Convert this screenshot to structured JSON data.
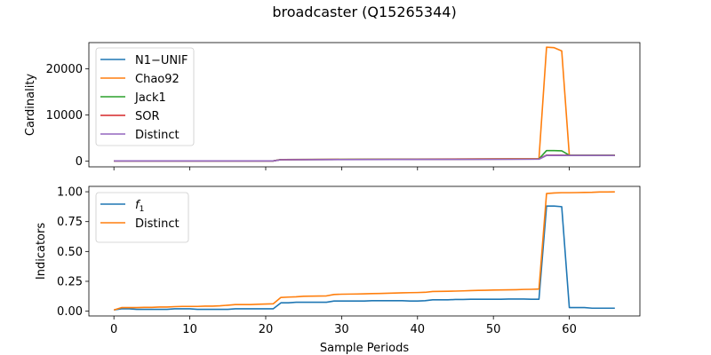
{
  "figure": {
    "title": "broadcaster (Q15265344)"
  },
  "chart_data": [
    {
      "type": "line",
      "ylabel": "Cardinality",
      "xlabel": "",
      "xlim": [
        -3.3,
        69.3
      ],
      "ylim": [
        -1220,
        25700
      ],
      "xticks": [
        0,
        10,
        20,
        30,
        40,
        50,
        60
      ],
      "yticks": [
        0,
        10000,
        20000
      ],
      "ytick_labels": [
        "0",
        "10000",
        "20000"
      ],
      "show_xtick_labels": false,
      "legend": "upper-left",
      "grid": false,
      "series": [
        {
          "name": "N1−UNIF",
          "color": "#1f77b4",
          "x": [
            0,
            21,
            22,
            56,
            57,
            59,
            60,
            66
          ],
          "y": [
            60,
            60,
            350,
            480,
            1300,
            1300,
            1250,
            1250
          ]
        },
        {
          "name": "Chao92",
          "color": "#ff7f0e",
          "x": [
            0,
            21,
            22,
            56,
            57,
            58,
            59,
            60,
            61,
            66
          ],
          "y": [
            60,
            60,
            350,
            550,
            24700,
            24600,
            23900,
            1300,
            1300,
            1300
          ]
        },
        {
          "name": "Jack1",
          "color": "#2ca02c",
          "x": [
            0,
            21,
            22,
            56,
            57,
            58,
            59,
            60,
            61,
            66
          ],
          "y": [
            60,
            60,
            350,
            500,
            2300,
            2300,
            2250,
            1300,
            1300,
            1300
          ]
        },
        {
          "name": "SOR",
          "color": "#d62728",
          "x": [
            0,
            21,
            22,
            56,
            57,
            59,
            60,
            66
          ],
          "y": [
            60,
            60,
            340,
            470,
            1300,
            1300,
            1250,
            1250
          ]
        },
        {
          "name": "Distinct",
          "color": "#9467bd",
          "x": [
            0,
            21,
            22,
            56,
            57,
            59,
            60,
            66
          ],
          "y": [
            60,
            60,
            320,
            440,
            1250,
            1250,
            1250,
            1250
          ]
        }
      ]
    },
    {
      "type": "line",
      "ylabel": "Indicators",
      "xlabel": "Sample Periods",
      "xlim": [
        -3.3,
        69.3
      ],
      "ylim": [
        -0.04,
        1.045
      ],
      "xticks": [
        0,
        10,
        20,
        30,
        40,
        50,
        60
      ],
      "xtick_labels": [
        "0",
        "10",
        "20",
        "30",
        "40",
        "50",
        "60"
      ],
      "yticks": [
        0.0,
        0.25,
        0.5,
        0.75,
        1.0
      ],
      "ytick_labels": [
        "0.00",
        "0.25",
        "0.50",
        "0.75",
        "1.00"
      ],
      "show_xtick_labels": true,
      "legend": "upper-left",
      "grid": false,
      "series": [
        {
          "name": "f1",
          "color": "#1f77b4",
          "x": [
            0,
            1,
            2,
            3,
            4,
            5,
            6,
            7,
            8,
            9,
            10,
            11,
            12,
            13,
            14,
            15,
            16,
            17,
            18,
            19,
            20,
            21,
            22,
            23,
            24,
            25,
            26,
            27,
            28,
            29,
            30,
            31,
            32,
            33,
            34,
            35,
            36,
            37,
            38,
            39,
            40,
            41,
            42,
            43,
            44,
            45,
            46,
            47,
            48,
            49,
            50,
            51,
            52,
            53,
            54,
            55,
            56,
            57,
            58,
            59,
            60,
            61,
            62,
            63,
            64,
            65,
            66
          ],
          "y": [
            0.01,
            0.02,
            0.02,
            0.015,
            0.015,
            0.015,
            0.015,
            0.015,
            0.02,
            0.02,
            0.02,
            0.015,
            0.015,
            0.015,
            0.015,
            0.015,
            0.02,
            0.02,
            0.02,
            0.02,
            0.02,
            0.02,
            0.07,
            0.07,
            0.075,
            0.075,
            0.075,
            0.075,
            0.075,
            0.085,
            0.085,
            0.085,
            0.085,
            0.085,
            0.088,
            0.088,
            0.088,
            0.088,
            0.088,
            0.085,
            0.085,
            0.088,
            0.095,
            0.095,
            0.095,
            0.098,
            0.098,
            0.1,
            0.1,
            0.1,
            0.1,
            0.1,
            0.102,
            0.102,
            0.102,
            0.1,
            0.1,
            0.88,
            0.88,
            0.875,
            0.03,
            0.03,
            0.03,
            0.025,
            0.025,
            0.025,
            0.025
          ]
        },
        {
          "name": "Distinct",
          "color": "#ff7f0e",
          "x": [
            0,
            1,
            2,
            3,
            4,
            5,
            6,
            7,
            8,
            9,
            10,
            11,
            12,
            13,
            14,
            15,
            16,
            17,
            18,
            19,
            20,
            21,
            22,
            23,
            24,
            25,
            26,
            27,
            28,
            29,
            30,
            31,
            32,
            33,
            34,
            35,
            36,
            37,
            38,
            39,
            40,
            41,
            42,
            43,
            44,
            45,
            46,
            47,
            48,
            49,
            50,
            51,
            52,
            53,
            54,
            55,
            56,
            57,
            58,
            59,
            60,
            61,
            62,
            63,
            64,
            65,
            66
          ],
          "y": [
            0.01,
            0.03,
            0.03,
            0.03,
            0.032,
            0.032,
            0.035,
            0.035,
            0.038,
            0.04,
            0.04,
            0.04,
            0.042,
            0.042,
            0.045,
            0.05,
            0.055,
            0.055,
            0.055,
            0.058,
            0.06,
            0.062,
            0.115,
            0.118,
            0.12,
            0.125,
            0.126,
            0.127,
            0.128,
            0.14,
            0.142,
            0.143,
            0.144,
            0.145,
            0.147,
            0.148,
            0.15,
            0.152,
            0.154,
            0.155,
            0.156,
            0.158,
            0.165,
            0.166,
            0.167,
            0.168,
            0.17,
            0.172,
            0.174,
            0.175,
            0.177,
            0.178,
            0.179,
            0.18,
            0.182,
            0.183,
            0.185,
            0.985,
            0.99,
            0.992,
            0.992,
            0.993,
            0.994,
            0.995,
            0.998,
            0.998,
            0.999
          ]
        }
      ]
    }
  ]
}
